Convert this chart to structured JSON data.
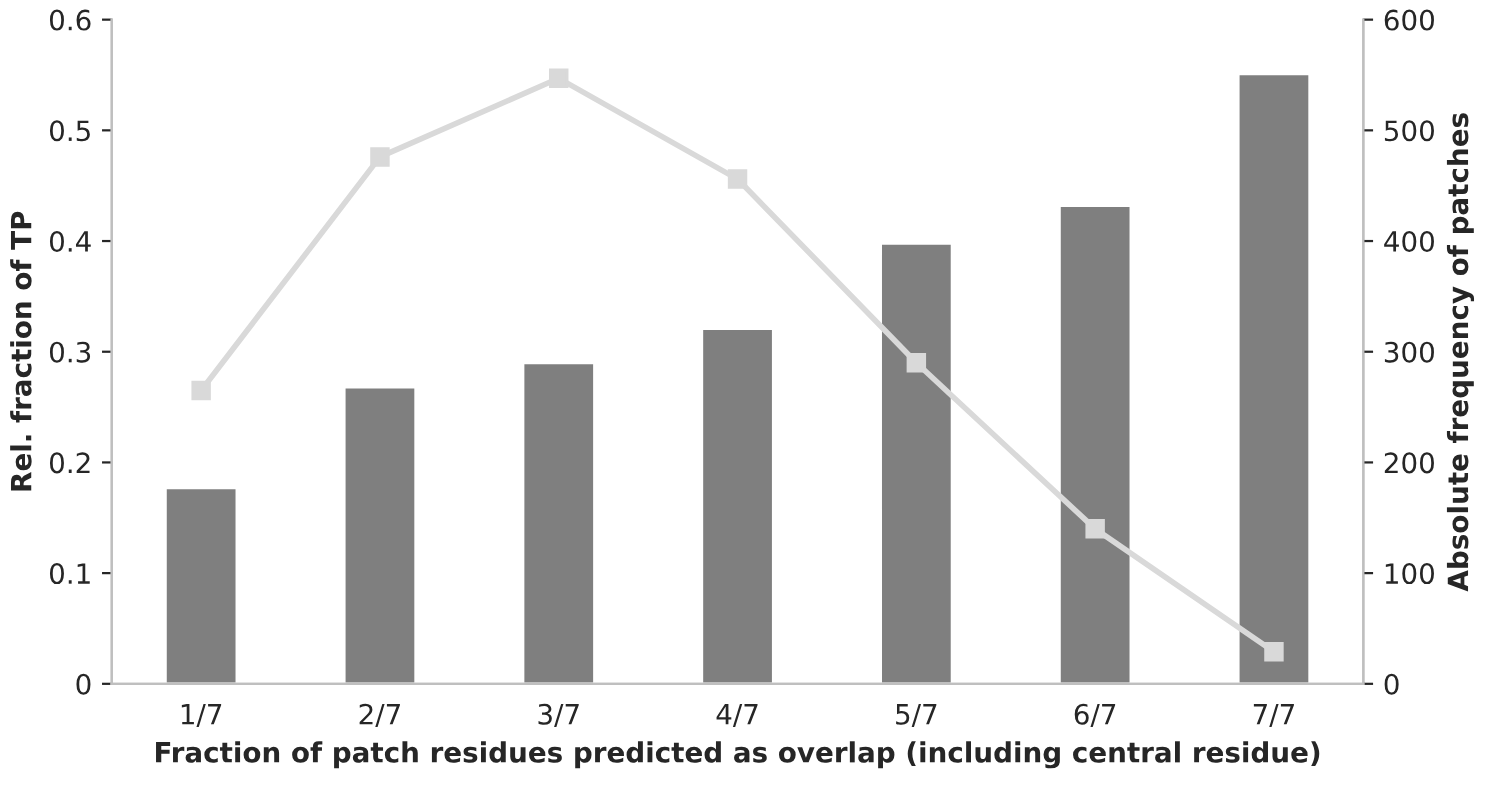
{
  "chart_data": {
    "type": "bar",
    "categories": [
      "1/7",
      "2/7",
      "3/7",
      "4/7",
      "5/7",
      "6/7",
      "7/7"
    ],
    "xlabel": "Fraction of patch residues predicted as overlap (including central residue)",
    "ylabel": "Rel. fraction of TP",
    "y2label": "Absolute frequency of patches",
    "series": [
      {
        "color": "#7f7f7f",
        "values": [
          0.177,
          0.268,
          0.29,
          0.321,
          0.398,
          0.432,
          0.551
        ]
      },
      {
        "type": "line",
        "axis": "y2",
        "color": "#d9d9d9",
        "marker": "square",
        "values": [
          265,
          476,
          547,
          456,
          290,
          140,
          29
        ]
      }
    ],
    "ylim": [
      0,
      0.6
    ],
    "yticks": [
      0,
      0.1,
      0.2,
      0.3,
      0.4,
      0.5,
      0.6
    ],
    "y2lim": [
      0,
      600
    ],
    "y2ticks": [
      0,
      100,
      200,
      300,
      400,
      500,
      600
    ],
    "grid": false,
    "legend": false
  }
}
